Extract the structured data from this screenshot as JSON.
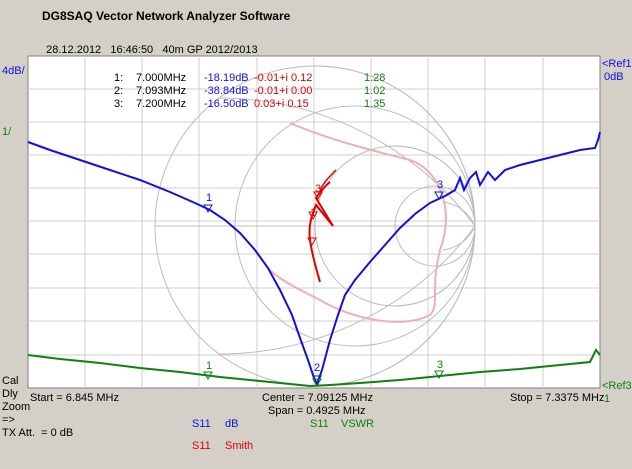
{
  "app": {
    "title": "DG8SAQ Vector Network Analyzer Software",
    "date": "28.12.2012",
    "time": "16:46:50",
    "description": "40m GP 2012/2013"
  },
  "scale": {
    "left_top": "4dB/",
    "left_ref": "1/",
    "right_ref1": "<Ref1",
    "right_ref1_value": "0dB",
    "right_ref3": "<Ref3",
    "right_ref3_value": "1"
  },
  "markers": [
    {
      "id": "1:",
      "freq": "7.000MHz",
      "s11_db": "-18.19dB",
      "smith": "-0.01+i 0.12",
      "vswr": "1.28"
    },
    {
      "id": "2:",
      "freq": "7.093MHz",
      "s11_db": "-38.84dB",
      "smith": "-0.01+i 0.00",
      "vswr": "1.02"
    },
    {
      "id": "3:",
      "freq": "7.200MHz",
      "s11_db": "-16.50dB",
      "smith": "0.03+i 0.15",
      "vswr": "1.35"
    }
  ],
  "marker_labels": {
    "m1": "1",
    "m2": "2",
    "m3": "3"
  },
  "footer": {
    "start": "Start = 6.845 MHz",
    "center": "Center = 7.09125 MHz",
    "span": "Span = 0.4925 MHz",
    "stop": "Stop = 7.3375 MHz"
  },
  "side_menu": {
    "cal": "Cal",
    "dly": "Dly",
    "zoom": "Zoom",
    "arrow": "=>",
    "tx_att": "TX Att.  = 0 dB"
  },
  "legend": [
    {
      "param": "S11",
      "type": "dB",
      "color": "#1010e0"
    },
    {
      "param": "S11",
      "type": "VSWR",
      "color": "#108010"
    },
    {
      "param": "S11",
      "type": "Smith",
      "color": "#e00000"
    }
  ],
  "colors": {
    "background": "#d4d0c8",
    "plot_background": "#ffffff",
    "grid": "#c8c8c8",
    "trace_db": "#1010e0",
    "trace_vswr": "#108010",
    "trace_smith": "#e00000"
  }
}
